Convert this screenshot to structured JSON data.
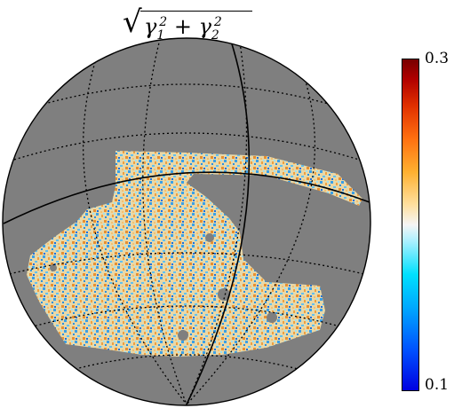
{
  "title": {
    "radical": "√",
    "gamma1": "γ",
    "sub1": "1",
    "sup1": "2",
    "plus": " + ",
    "gamma2": "γ",
    "sub2": "2",
    "sup2": "2"
  },
  "colorbar": {
    "max_label": "0.3",
    "min_label": "0.1",
    "min_value": 0.1,
    "max_value": 0.3,
    "colormap": "blue-white-orange-red (diverging)"
  },
  "colors": {
    "sphere_background": "#7f7f7f",
    "graticule": "#000000",
    "low": "#1a6fe0",
    "mid": "#f2f2e6",
    "high": "#e8a030"
  }
}
